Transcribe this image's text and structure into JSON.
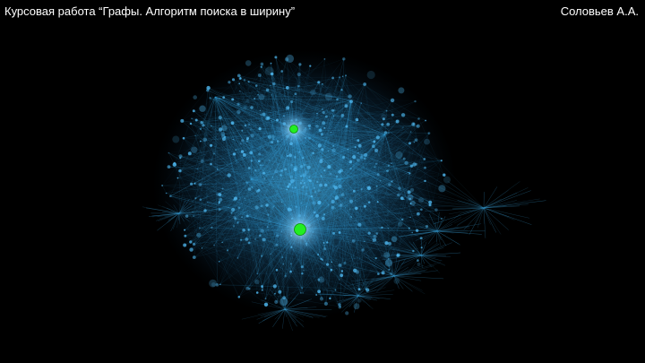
{
  "header": {
    "title": "Курсовая работа “Графы. Алгоритм поиска в ширину”",
    "author": "Соловьев А.А."
  },
  "visualization": {
    "background_color": "#000000",
    "edge_color": "#3aa6e0",
    "node_color": "#4fb8f0",
    "highlight_color": "#22ee22",
    "highlighted_nodes": 2
  }
}
